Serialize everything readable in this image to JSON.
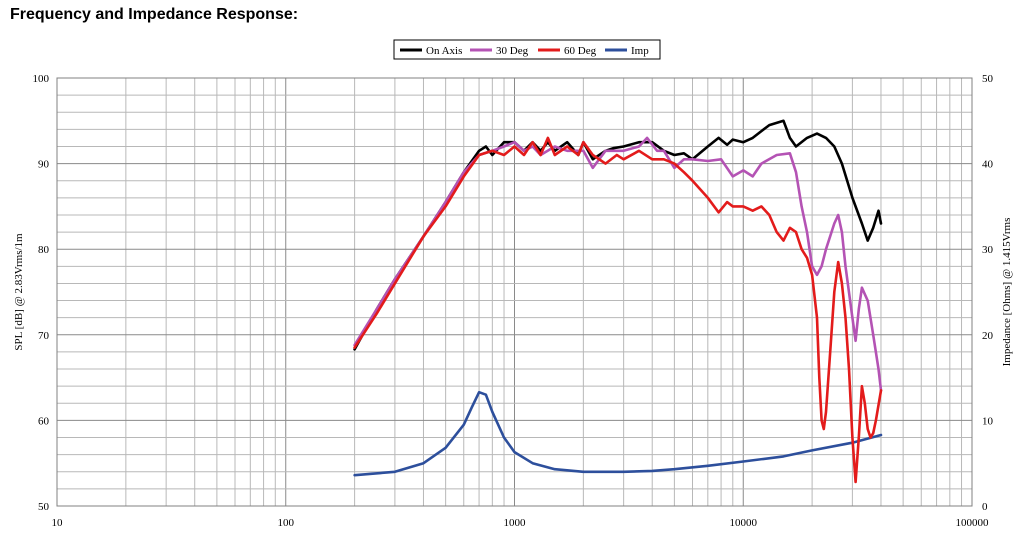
{
  "page": {
    "title": "Frequency and Impedance Response:"
  },
  "chart_data": {
    "type": "line",
    "x_scale": "log",
    "xlim": [
      10,
      100000
    ],
    "ylim_left": [
      50,
      100
    ],
    "ylim_right": [
      0,
      50
    ],
    "x_ticks": [
      "10",
      "100",
      "1000",
      "10000",
      "100000"
    ],
    "y_left_ticks": [
      "100",
      "90",
      "80",
      "70",
      "60",
      "50"
    ],
    "y_right_ticks": [
      "50",
      "40",
      "30",
      "20",
      "10",
      "0"
    ],
    "ylabel_left": "SPL [dB] @ 2.83Vrms/1m",
    "ylabel_right": "Impedance [Ohms] @ 1.415Vrms",
    "grid": true,
    "legend_position": "top-center",
    "series": [
      {
        "name": "On Axis",
        "color": "#000000",
        "axis": "left",
        "points": [
          [
            200,
            68.3
          ],
          [
            250,
            73
          ],
          [
            300,
            76.5
          ],
          [
            400,
            81.5
          ],
          [
            500,
            85.5
          ],
          [
            600,
            89
          ],
          [
            700,
            91.5
          ],
          [
            750,
            92
          ],
          [
            800,
            91
          ],
          [
            900,
            92.5
          ],
          [
            1000,
            92.5
          ],
          [
            1100,
            91.5
          ],
          [
            1200,
            92.5
          ],
          [
            1300,
            91.5
          ],
          [
            1400,
            92.5
          ],
          [
            1500,
            91.5
          ],
          [
            1700,
            92.5
          ],
          [
            1900,
            91
          ],
          [
            2000,
            92.5
          ],
          [
            2200,
            90.5
          ],
          [
            2500,
            91.5
          ],
          [
            2700,
            91.8
          ],
          [
            3000,
            92
          ],
          [
            3500,
            92.5
          ],
          [
            4000,
            92.5
          ],
          [
            4500,
            91.5
          ],
          [
            5000,
            91
          ],
          [
            5500,
            91.2
          ],
          [
            6000,
            90.5
          ],
          [
            7000,
            92
          ],
          [
            7800,
            93
          ],
          [
            8500,
            92.2
          ],
          [
            9000,
            92.8
          ],
          [
            10000,
            92.5
          ],
          [
            11000,
            93
          ],
          [
            12000,
            93.8
          ],
          [
            13000,
            94.5
          ],
          [
            15000,
            95
          ],
          [
            16000,
            93
          ],
          [
            17000,
            92
          ],
          [
            19000,
            93
          ],
          [
            21000,
            93.5
          ],
          [
            23000,
            93
          ],
          [
            25000,
            92
          ],
          [
            27000,
            90
          ],
          [
            30000,
            86
          ],
          [
            33000,
            83
          ],
          [
            35000,
            81
          ],
          [
            37000,
            82.5
          ],
          [
            39000,
            84.5
          ],
          [
            40000,
            83
          ]
        ]
      },
      {
        "name": "30 Deg",
        "color": "#b453b4",
        "axis": "left",
        "points": [
          [
            200,
            68.8
          ],
          [
            250,
            73
          ],
          [
            300,
            76.5
          ],
          [
            400,
            81.5
          ],
          [
            500,
            85.5
          ],
          [
            600,
            89
          ],
          [
            700,
            91
          ],
          [
            800,
            91.5
          ],
          [
            900,
            92
          ],
          [
            1000,
            92.5
          ],
          [
            1100,
            91.5
          ],
          [
            1200,
            92
          ],
          [
            1300,
            91
          ],
          [
            1500,
            92
          ],
          [
            1700,
            91.5
          ],
          [
            2000,
            91.5
          ],
          [
            2200,
            89.5
          ],
          [
            2500,
            91.5
          ],
          [
            3000,
            91.5
          ],
          [
            3500,
            92
          ],
          [
            3800,
            93
          ],
          [
            4200,
            91.5
          ],
          [
            4500,
            91.5
          ],
          [
            5000,
            89.5
          ],
          [
            5500,
            90.5
          ],
          [
            6000,
            90.5
          ],
          [
            7000,
            90.3
          ],
          [
            8000,
            90.5
          ],
          [
            9000,
            88.5
          ],
          [
            10000,
            89.2
          ],
          [
            11000,
            88.5
          ],
          [
            12000,
            90
          ],
          [
            14000,
            91
          ],
          [
            16000,
            91.2
          ],
          [
            17000,
            89
          ],
          [
            18000,
            85
          ],
          [
            19000,
            82
          ],
          [
            20000,
            78
          ],
          [
            21000,
            77
          ],
          [
            22000,
            78
          ],
          [
            23000,
            80
          ],
          [
            25000,
            83
          ],
          [
            26000,
            84
          ],
          [
            27000,
            82
          ],
          [
            28000,
            78
          ],
          [
            30000,
            72
          ],
          [
            31000,
            69.3
          ],
          [
            32000,
            73
          ],
          [
            33000,
            75.5
          ],
          [
            35000,
            74
          ],
          [
            37000,
            70
          ],
          [
            39000,
            66
          ],
          [
            40000,
            63.5
          ]
        ]
      },
      {
        "name": "60 Deg",
        "color": "#e31b1b",
        "axis": "left",
        "points": [
          [
            200,
            68.5
          ],
          [
            250,
            72.5
          ],
          [
            300,
            76
          ],
          [
            400,
            81.5
          ],
          [
            500,
            85
          ],
          [
            600,
            88.5
          ],
          [
            700,
            91
          ],
          [
            800,
            91.5
          ],
          [
            900,
            91
          ],
          [
            1000,
            92
          ],
          [
            1100,
            91
          ],
          [
            1200,
            92.5
          ],
          [
            1300,
            91
          ],
          [
            1400,
            93
          ],
          [
            1500,
            91
          ],
          [
            1700,
            92
          ],
          [
            1900,
            91
          ],
          [
            2000,
            92.5
          ],
          [
            2200,
            91
          ],
          [
            2500,
            90
          ],
          [
            2800,
            91
          ],
          [
            3000,
            90.5
          ],
          [
            3500,
            91.5
          ],
          [
            4000,
            90.5
          ],
          [
            4500,
            90.5
          ],
          [
            5000,
            90
          ],
          [
            5500,
            89
          ],
          [
            6000,
            88
          ],
          [
            7000,
            86
          ],
          [
            7800,
            84.3
          ],
          [
            8500,
            85.5
          ],
          [
            9000,
            85
          ],
          [
            10000,
            85
          ],
          [
            11000,
            84.5
          ],
          [
            12000,
            85
          ],
          [
            13000,
            84
          ],
          [
            14000,
            82
          ],
          [
            15000,
            81
          ],
          [
            16000,
            82.5
          ],
          [
            17000,
            82
          ],
          [
            18000,
            80
          ],
          [
            19000,
            79
          ],
          [
            20000,
            77
          ],
          [
            21000,
            72
          ],
          [
            21500,
            65
          ],
          [
            22000,
            60
          ],
          [
            22500,
            59
          ],
          [
            23000,
            61
          ],
          [
            24000,
            68
          ],
          [
            25000,
            75
          ],
          [
            26000,
            78.5
          ],
          [
            27000,
            76
          ],
          [
            28000,
            72
          ],
          [
            29000,
            66
          ],
          [
            30000,
            58
          ],
          [
            31000,
            52.8
          ],
          [
            32000,
            58
          ],
          [
            33000,
            64
          ],
          [
            34000,
            62
          ],
          [
            35000,
            59
          ],
          [
            36000,
            58
          ],
          [
            37000,
            58.5
          ],
          [
            38000,
            60
          ],
          [
            40000,
            63.5
          ]
        ]
      },
      {
        "name": "Imp",
        "color": "#2d4f9c",
        "axis": "right",
        "points": [
          [
            200,
            3.6
          ],
          [
            300,
            4
          ],
          [
            400,
            5
          ],
          [
            500,
            6.8
          ],
          [
            600,
            9.5
          ],
          [
            650,
            11.5
          ],
          [
            700,
            13.3
          ],
          [
            750,
            13
          ],
          [
            800,
            11
          ],
          [
            900,
            8
          ],
          [
            1000,
            6.3
          ],
          [
            1200,
            5
          ],
          [
            1500,
            4.3
          ],
          [
            2000,
            4
          ],
          [
            3000,
            4
          ],
          [
            4000,
            4.1
          ],
          [
            5000,
            4.3
          ],
          [
            7000,
            4.7
          ],
          [
            10000,
            5.2
          ],
          [
            15000,
            5.8
          ],
          [
            20000,
            6.5
          ],
          [
            30000,
            7.4
          ],
          [
            40000,
            8.3
          ]
        ]
      }
    ]
  }
}
